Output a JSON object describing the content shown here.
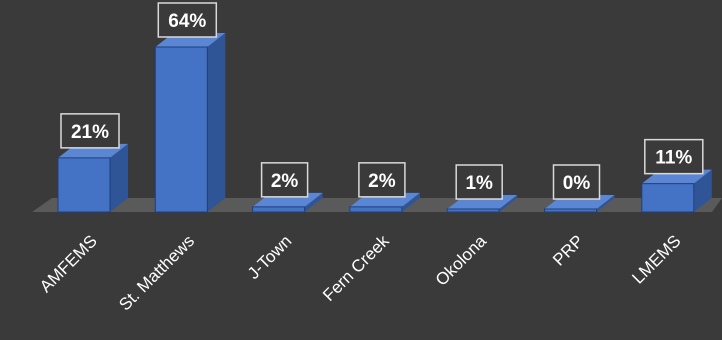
{
  "chart_data": {
    "type": "bar",
    "style": "3d-column",
    "categories": [
      "AMFEMS",
      "St. Matthews",
      "J-Town",
      "Fern Creek",
      "Okolona",
      "PRP",
      "LMEMS"
    ],
    "values": [
      21,
      64,
      2,
      2,
      1,
      0,
      11
    ],
    "data_labels": [
      "21%",
      "64%",
      "2%",
      "2%",
      "1%",
      "0%",
      "11%"
    ],
    "title": "",
    "xlabel": "",
    "ylabel": "",
    "ylim": [
      0,
      64
    ],
    "grid": false,
    "legend": "none",
    "colors": {
      "background": "#3a3a3a",
      "floor": "#5a5a5a",
      "bar_front": "#4472c4",
      "bar_side": "#2f5597",
      "bar_top": "#5b86d4",
      "label_box": "#3a3a3a",
      "label_border": "#d9d9d9",
      "text": "#ffffff"
    }
  }
}
